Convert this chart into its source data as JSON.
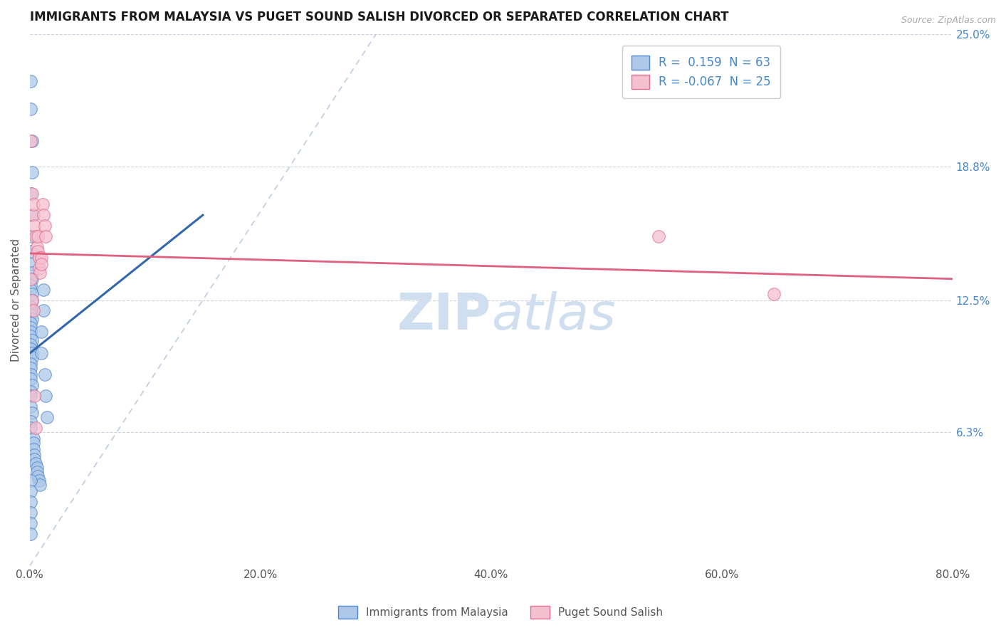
{
  "title": "IMMIGRANTS FROM MALAYSIA VS PUGET SOUND SALISH DIVORCED OR SEPARATED CORRELATION CHART",
  "source_text": "Source: ZipAtlas.com",
  "ylabel": "Divorced or Separated",
  "legend_labels": [
    "Immigrants from Malaysia",
    "Puget Sound Salish"
  ],
  "r_values": [
    0.159,
    -0.067
  ],
  "n_values": [
    63,
    25
  ],
  "xlim": [
    0.0,
    0.8
  ],
  "ylim": [
    0.0,
    0.25
  ],
  "ytick_labels": [
    "",
    "6.3%",
    "12.5%",
    "18.8%",
    "25.0%"
  ],
  "ytick_values": [
    0.0,
    0.063,
    0.125,
    0.188,
    0.25
  ],
  "xtick_labels": [
    "0.0%",
    "",
    "",
    "",
    "",
    "20.0%",
    "",
    "",
    "",
    "",
    "40.0%",
    "",
    "",
    "",
    "",
    "60.0%",
    "",
    "",
    "",
    "",
    "80.0%"
  ],
  "xtick_values": [
    0.0,
    0.04,
    0.08,
    0.12,
    0.16,
    0.2,
    0.24,
    0.28,
    0.32,
    0.36,
    0.4,
    0.44,
    0.48,
    0.52,
    0.56,
    0.6,
    0.64,
    0.68,
    0.72,
    0.76,
    0.8
  ],
  "blue_color": "#adc8e8",
  "blue_edge_color": "#5588cc",
  "blue_line_color": "#3366aa",
  "pink_color": "#f5c0d0",
  "pink_edge_color": "#e07090",
  "pink_line_color": "#e06080",
  "ref_line_color": "#b8c8dc",
  "grid_color": "#c8d0dc",
  "background_color": "#ffffff",
  "title_color": "#1a1a1a",
  "right_tick_color": "#4488cc",
  "watermark_color": "#d0dff0",
  "watermark_text": "ZIPatlas",
  "blue_x": [
    0.001,
    0.001,
    0.002,
    0.002,
    0.001,
    0.002,
    0.002,
    0.001,
    0.001,
    0.002,
    0.002,
    0.001,
    0.001,
    0.002,
    0.002,
    0.001,
    0.001,
    0.001,
    0.002,
    0.001,
    0.001,
    0.001,
    0.001,
    0.002,
    0.001,
    0.001,
    0.002,
    0.002,
    0.001,
    0.001,
    0.001,
    0.001,
    0.002,
    0.001,
    0.001,
    0.001,
    0.002,
    0.001,
    0.001,
    0.003,
    0.003,
    0.003,
    0.004,
    0.004,
    0.005,
    0.006,
    0.006,
    0.007,
    0.008,
    0.009,
    0.01,
    0.01,
    0.012,
    0.012,
    0.013,
    0.014,
    0.015,
    0.001,
    0.001,
    0.001,
    0.001,
    0.001,
    0.001
  ],
  "blue_y": [
    0.228,
    0.215,
    0.2,
    0.185,
    0.175,
    0.165,
    0.155,
    0.148,
    0.142,
    0.138,
    0.135,
    0.132,
    0.13,
    0.128,
    0.125,
    0.122,
    0.12,
    0.118,
    0.116,
    0.114,
    0.112,
    0.11,
    0.108,
    0.106,
    0.104,
    0.102,
    0.1,
    0.098,
    0.095,
    0.093,
    0.09,
    0.088,
    0.085,
    0.082,
    0.08,
    0.075,
    0.072,
    0.068,
    0.065,
    0.06,
    0.058,
    0.055,
    0.052,
    0.05,
    0.048,
    0.046,
    0.044,
    0.042,
    0.04,
    0.038,
    0.1,
    0.11,
    0.12,
    0.13,
    0.09,
    0.08,
    0.07,
    0.04,
    0.035,
    0.03,
    0.025,
    0.02,
    0.015
  ],
  "pink_x": [
    0.001,
    0.002,
    0.003,
    0.003,
    0.004,
    0.005,
    0.006,
    0.007,
    0.007,
    0.008,
    0.008,
    0.009,
    0.01,
    0.01,
    0.011,
    0.012,
    0.013,
    0.014,
    0.001,
    0.002,
    0.003,
    0.004,
    0.545,
    0.645,
    0.005
  ],
  "pink_y": [
    0.2,
    0.175,
    0.165,
    0.17,
    0.16,
    0.155,
    0.15,
    0.148,
    0.155,
    0.145,
    0.14,
    0.138,
    0.145,
    0.142,
    0.17,
    0.165,
    0.16,
    0.155,
    0.135,
    0.125,
    0.12,
    0.08,
    0.155,
    0.128,
    0.065
  ],
  "blue_trend_x": [
    0.0,
    0.15
  ],
  "blue_trend_y": [
    0.1,
    0.165
  ],
  "pink_trend_x": [
    0.0,
    0.8
  ],
  "pink_trend_y": [
    0.147,
    0.135
  ]
}
